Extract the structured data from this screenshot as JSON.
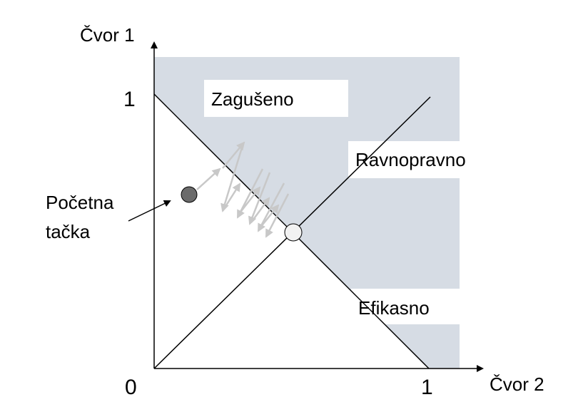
{
  "axes": {
    "y_label": "Čvor 1",
    "x_label": "Čvor 2",
    "origin_label": "0",
    "x_tick": "1",
    "y_tick": "1"
  },
  "regions": {
    "congested": "Zagušeno",
    "fair": "Ravnopravno",
    "efficient": "Efikasno"
  },
  "start_point": {
    "line1": "Početna",
    "line2": "tačka"
  },
  "colors": {
    "shade": "#d6dce4",
    "axis": "#000000",
    "start_dot": "#6b6b6b",
    "optimum_dot": "#f2f2f2",
    "trajectory": "#c8c8c8"
  }
}
